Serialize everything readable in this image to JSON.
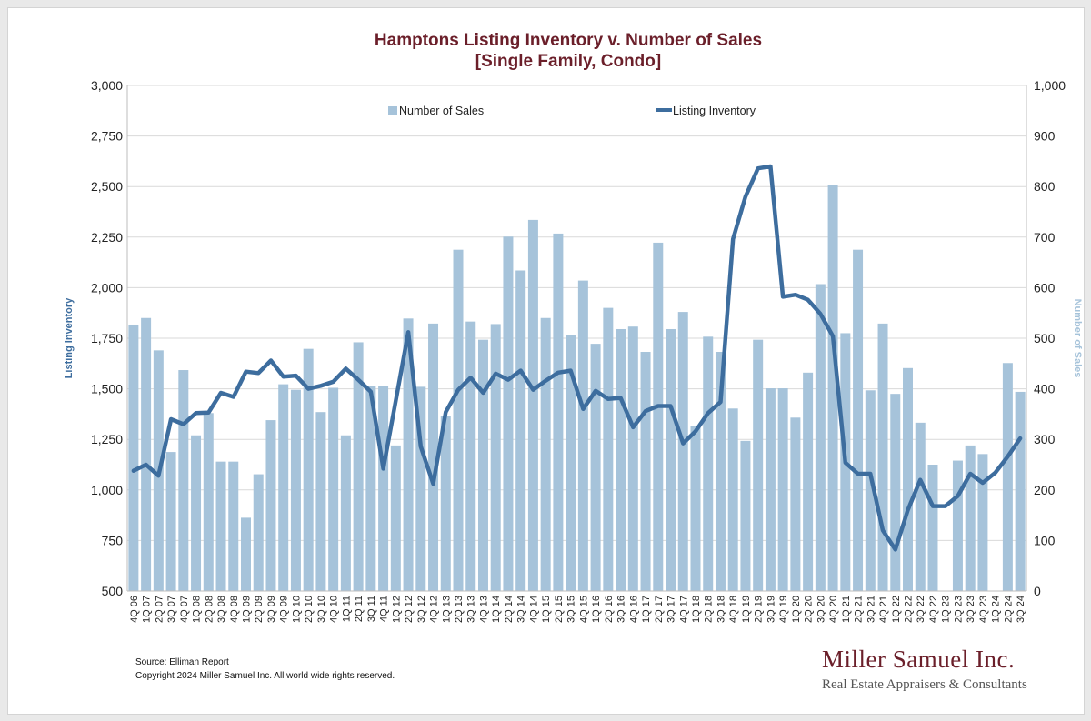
{
  "chart_data": {
    "type": "bar+line",
    "title": [
      "Hamptons Listing Inventory v. Number of Sales",
      "[Single Family, Condo]"
    ],
    "y_left_label": "Listing Inventory",
    "y_right_label": "Number of Sales",
    "y_left_range": [
      500,
      3000
    ],
    "y_right_range": [
      0,
      1000
    ],
    "y_left_ticks": [
      "500",
      "750",
      "1,000",
      "1,250",
      "1,500",
      "1,750",
      "2,000",
      "2,250",
      "2,500",
      "2,750",
      "3,000"
    ],
    "y_right_ticks": [
      "0",
      "100",
      "200",
      "300",
      "400",
      "500",
      "600",
      "700",
      "800",
      "900",
      "1,000"
    ],
    "grid": "horizontal",
    "legend_position": "top",
    "colors": {
      "bars": "#a6c3da",
      "line": "#3d6d9e",
      "title": "#6b1f2a",
      "right_axis_label": "#a6c3da",
      "left_axis_label": "#3d6d9e"
    },
    "categories": [
      "4Q 06",
      "1Q 07",
      "2Q 07",
      "3Q 07",
      "4Q 07",
      "1Q 08",
      "2Q 08",
      "3Q 08",
      "4Q 08",
      "1Q 09",
      "2Q 09",
      "3Q 09",
      "4Q 09",
      "1Q 10",
      "2Q 10",
      "3Q 10",
      "4Q 10",
      "1Q 11",
      "2Q 11",
      "3Q 11",
      "4Q 11",
      "1Q 12",
      "2Q 12",
      "3Q 12",
      "4Q 12",
      "1Q 13",
      "2Q 13",
      "3Q 13",
      "4Q 13",
      "1Q 14",
      "2Q 14",
      "3Q 14",
      "4Q 14",
      "1Q 15",
      "2Q 15",
      "3Q 15",
      "4Q 15",
      "1Q 16",
      "2Q 16",
      "3Q 16",
      "4Q 16",
      "1Q 17",
      "2Q 17",
      "3Q 17",
      "4Q 17",
      "1Q 18",
      "2Q 18",
      "3Q 18",
      "4Q 18",
      "1Q 19",
      "2Q 19",
      "3Q 19",
      "4Q 19",
      "1Q 20",
      "2Q 20",
      "3Q 20",
      "4Q 20",
      "1Q 21",
      "2Q 21",
      "3Q 21",
      "4Q 21",
      "1Q 22",
      "2Q 22",
      "3Q 22",
      "4Q 22",
      "1Q 23",
      "2Q 23",
      "3Q 23",
      "4Q 23",
      "1Q 24",
      "2Q 24",
      "3Q 24"
    ],
    "series": [
      {
        "name": "Number of Sales",
        "axis": "right",
        "type": "bar",
        "values": [
          527,
          540,
          476,
          275,
          437,
          308,
          352,
          256,
          256,
          145,
          231,
          338,
          409,
          398,
          479,
          354,
          402,
          308,
          492,
          405,
          405,
          288,
          539,
          404,
          529,
          347,
          675,
          533,
          497,
          528,
          701,
          634,
          734,
          540,
          707,
          507,
          614,
          489,
          560,
          518,
          523,
          473,
          689,
          518,
          552,
          327,
          503,
          473,
          361,
          297,
          497,
          401,
          401,
          343,
          432,
          607,
          803,
          510,
          675,
          397,
          529,
          390,
          441,
          333,
          250,
          0,
          258,
          288,
          271,
          0,
          451,
          394
        ]
      },
      {
        "name": "Listing Inventory",
        "axis": "left",
        "type": "line",
        "values": [
          1095,
          1125,
          1070,
          1350,
          1325,
          1380,
          1382,
          1480,
          1460,
          1585,
          1578,
          1640,
          1560,
          1565,
          1500,
          1515,
          1535,
          1600,
          1545,
          1485,
          1105,
          1440,
          1780,
          1215,
          1030,
          1385,
          1495,
          1555,
          1480,
          1575,
          1545,
          1590,
          1495,
          1540,
          1580,
          1590,
          1400,
          1490,
          1450,
          1455,
          1310,
          1390,
          1415,
          1415,
          1230,
          1290,
          1380,
          1435,
          2240,
          2450,
          2590,
          2600,
          1955,
          1965,
          1940,
          1870,
          1760,
          1135,
          1080,
          1080,
          800,
          705,
          900,
          1050,
          920,
          920,
          970,
          1080,
          1035,
          1085,
          1165,
          1255
        ]
      }
    ]
  },
  "footer": {
    "source": "Source: Elliman Report",
    "copyright": "Copyright 2024 Miller Samuel Inc.  All world wide rights reserved.",
    "brand_name": "Miller Samuel Inc.",
    "brand_tagline": "Real Estate Appraisers & Consultants"
  }
}
